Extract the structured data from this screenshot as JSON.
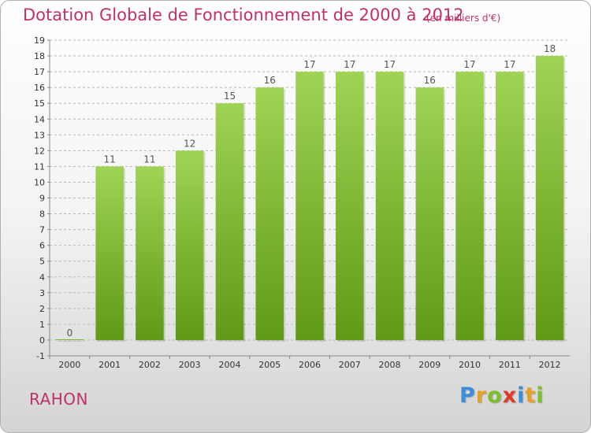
{
  "title": "Dotation Globale de Fonctionnement de 2000 à 2012",
  "subtitle": "(en milliers d'€)",
  "commune": "RAHON",
  "logo": {
    "text": "Proxiti",
    "letters": [
      {
        "ch": "P",
        "color": "#3a8fd8"
      },
      {
        "ch": "r",
        "color": "#e8a020"
      },
      {
        "ch": "o",
        "color": "#7cbf2a"
      },
      {
        "ch": "x",
        "color": "#e03a2a"
      },
      {
        "ch": "i",
        "color": "#3a8fd8"
      },
      {
        "ch": "t",
        "color": "#e8a020"
      },
      {
        "ch": "i",
        "color": "#7cbf2a"
      }
    ]
  },
  "colors": {
    "title": "#c0306a",
    "bar_top": "#9fd354",
    "bar_bottom": "#5f9a16",
    "grid": "#b8b8b8",
    "axis": "#888888"
  },
  "chart_data": {
    "type": "bar",
    "title": "Dotation Globale de Fonctionnement de 2000 à 2012",
    "subtitle": "(en milliers d'€)",
    "categories": [
      "2000",
      "2001",
      "2002",
      "2003",
      "2004",
      "2005",
      "2006",
      "2007",
      "2008",
      "2009",
      "2010",
      "2011",
      "2012"
    ],
    "values": [
      0,
      11,
      11,
      12,
      15,
      16,
      17,
      17,
      17,
      16,
      17,
      17,
      18
    ],
    "ylim": [
      -1,
      19
    ],
    "yticks": [
      -1,
      0,
      1,
      2,
      3,
      4,
      5,
      6,
      7,
      8,
      9,
      10,
      11,
      12,
      13,
      14,
      15,
      16,
      17,
      18,
      19
    ],
    "grid": "horizontal dashed",
    "data_labels": true
  }
}
